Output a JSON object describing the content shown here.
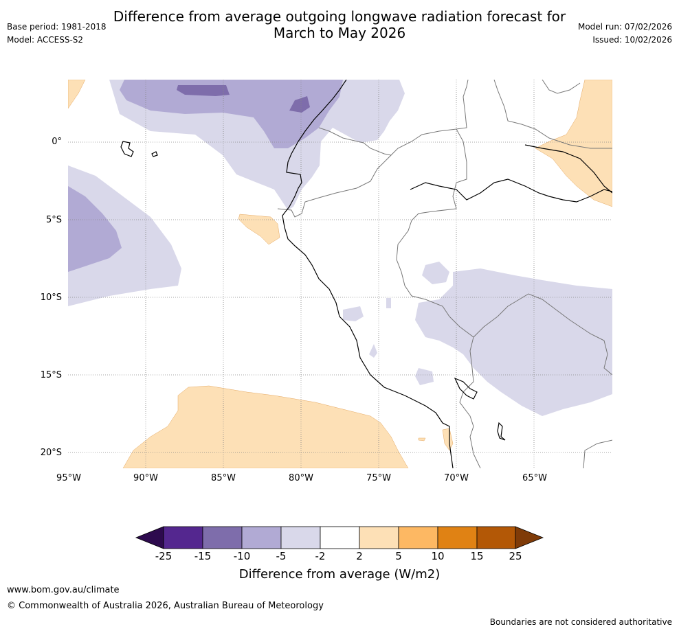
{
  "header": {
    "title_line1": "Difference from average outgoing longwave radiation forecast for",
    "title_line2": "March to May 2026",
    "base_period": "Base period: 1981-2018",
    "model": "Model: ACCESS-S2",
    "model_run": "Model run: 07/02/2026",
    "issued": "Issued: 10/02/2026"
  },
  "map": {
    "region": "Northwestern South America and eastern Pacific",
    "lat_labels": [
      "0°",
      "5°S",
      "10°S",
      "15°S",
      "20°S"
    ],
    "lon_labels": [
      "95°W",
      "90°W",
      "85°W",
      "80°W",
      "75°W",
      "70°W",
      "65°W"
    ]
  },
  "legend": {
    "ticks": [
      "-25",
      "-15",
      "-10",
      "-5",
      "-2",
      "2",
      "5",
      "10",
      "15",
      "25"
    ],
    "label": "Difference from average (W/m2)",
    "colors": {
      "lt_-25": "#2d0a4e",
      "-25_-15": "#54278f",
      "-15_-10": "#7e6dab",
      "-10_-5": "#b1aad4",
      "-5_-2": "#d9d8ea",
      "-2_2": "#ffffff",
      "2_5": "#fde0b6",
      "5_10": "#fdb863",
      "10_15": "#e08214",
      "15_25": "#b35806",
      "gt_25": "#7f3b08"
    }
  },
  "footer": {
    "site": "www.bom.gov.au/climate",
    "copyright": "© Commonwealth of Australia 2026, Australian Bureau of Meteorology",
    "disclaimer": "Boundaries are not considered authoritative"
  }
}
